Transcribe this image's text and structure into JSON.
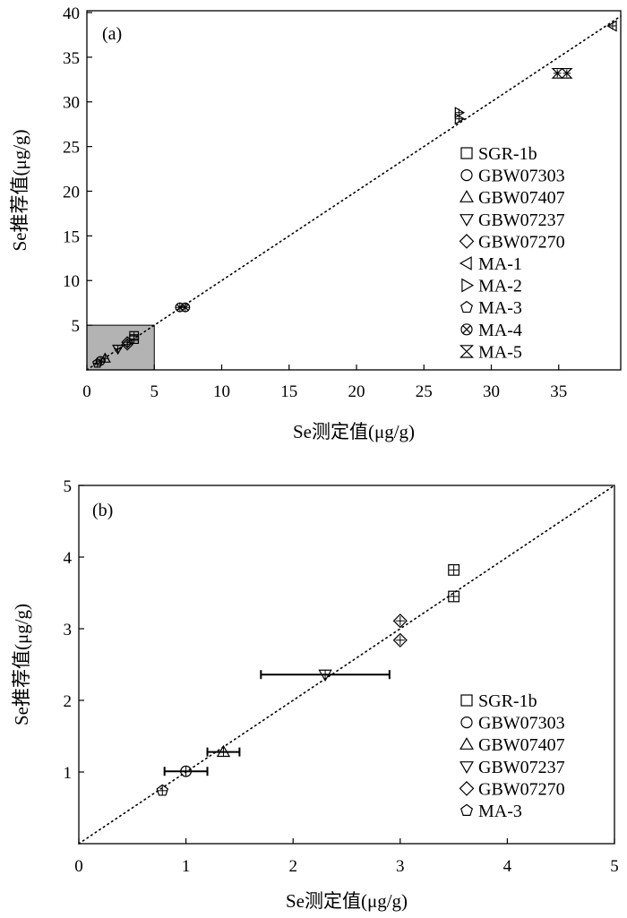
{
  "chart_data": [
    {
      "type": "scatter",
      "panel_label": "(a)",
      "xlabel": "Se测定值(μg/g)",
      "ylabel": "Se推荐值(μg/g)",
      "xlim": [
        0,
        39.6
      ],
      "ylim": [
        0,
        40.2
      ],
      "xticks": [
        0,
        5,
        10,
        15,
        20,
        25,
        30,
        35
      ],
      "yticks": [
        5,
        10,
        15,
        20,
        25,
        30,
        35,
        40
      ],
      "reference_line": "y = x (dotted)",
      "highlight_region": {
        "x": [
          0,
          5
        ],
        "y": [
          0,
          5
        ],
        "color": "#b3b3b3"
      },
      "legend_position": "right",
      "series": [
        {
          "name": "SGR-1b",
          "marker": "square",
          "points": [
            [
              3.5,
              3.45
            ],
            [
              3.5,
              3.8
            ]
          ]
        },
        {
          "name": "GBW07303",
          "marker": "circle",
          "points": [
            [
              1.0,
              1.0
            ]
          ]
        },
        {
          "name": "GBW07407",
          "marker": "triangle-up",
          "points": [
            [
              1.35,
              1.28
            ]
          ]
        },
        {
          "name": "GBW07237",
          "marker": "triangle-down",
          "points": [
            [
              2.3,
              2.35
            ]
          ]
        },
        {
          "name": "GBW07270",
          "marker": "diamond",
          "points": [
            [
              3.0,
              2.84
            ],
            [
              3.0,
              3.1
            ]
          ]
        },
        {
          "name": "MA-1",
          "marker": "triangle-left",
          "points": [
            [
              39.0,
              38.5
            ]
          ]
        },
        {
          "name": "MA-2",
          "marker": "triangle-right",
          "points": [
            [
              27.6,
              28.1
            ],
            [
              27.6,
              28.8
            ]
          ]
        },
        {
          "name": "MA-3",
          "marker": "pentagon",
          "points": [
            [
              0.78,
              0.74
            ]
          ]
        },
        {
          "name": "MA-4",
          "marker": "circle-x",
          "points": [
            [
              6.9,
              7.0
            ],
            [
              7.3,
              7.0
            ]
          ]
        },
        {
          "name": "MA-5",
          "marker": "x-triangles",
          "points": [
            [
              34.9,
              33.2
            ],
            [
              35.6,
              33.2
            ]
          ]
        }
      ]
    },
    {
      "type": "scatter",
      "panel_label": "(b)",
      "xlabel": "Se测定值(μg/g)",
      "ylabel": "Se推荐值(μg/g)",
      "xlim": [
        0,
        5
      ],
      "ylim": [
        0,
        5
      ],
      "xticks": [
        0,
        1,
        2,
        3,
        4,
        5
      ],
      "yticks": [
        1,
        2,
        3,
        4,
        5
      ],
      "reference_line": "y = x (dotted)",
      "legend_position": "bottom-right",
      "series": [
        {
          "name": "SGR-1b",
          "marker": "square",
          "points": [
            [
              3.5,
              3.45
            ],
            [
              3.5,
              3.82
            ]
          ]
        },
        {
          "name": "GBW07303",
          "marker": "circle",
          "points": [
            [
              1.0,
              1.01
            ]
          ]
        },
        {
          "name": "GBW07407",
          "marker": "triangle-up",
          "points": [
            [
              1.35,
              1.28
            ]
          ]
        },
        {
          "name": "GBW07237",
          "marker": "triangle-down",
          "points": [
            [
              2.3,
              2.36
            ]
          ]
        },
        {
          "name": "GBW07270",
          "marker": "diamond",
          "points": [
            [
              3.0,
              2.84
            ],
            [
              3.0,
              3.11
            ]
          ]
        },
        {
          "name": "MA-3",
          "marker": "pentagon",
          "points": [
            [
              0.78,
              0.74
            ]
          ]
        }
      ],
      "error_bars": [
        {
          "x": 1.0,
          "y": 1.01,
          "xerr": 0.2
        },
        {
          "x": 1.35,
          "y": 1.28,
          "xerr": 0.15
        },
        {
          "x": 2.3,
          "y": 2.36,
          "xerr": 0.6
        }
      ]
    }
  ]
}
